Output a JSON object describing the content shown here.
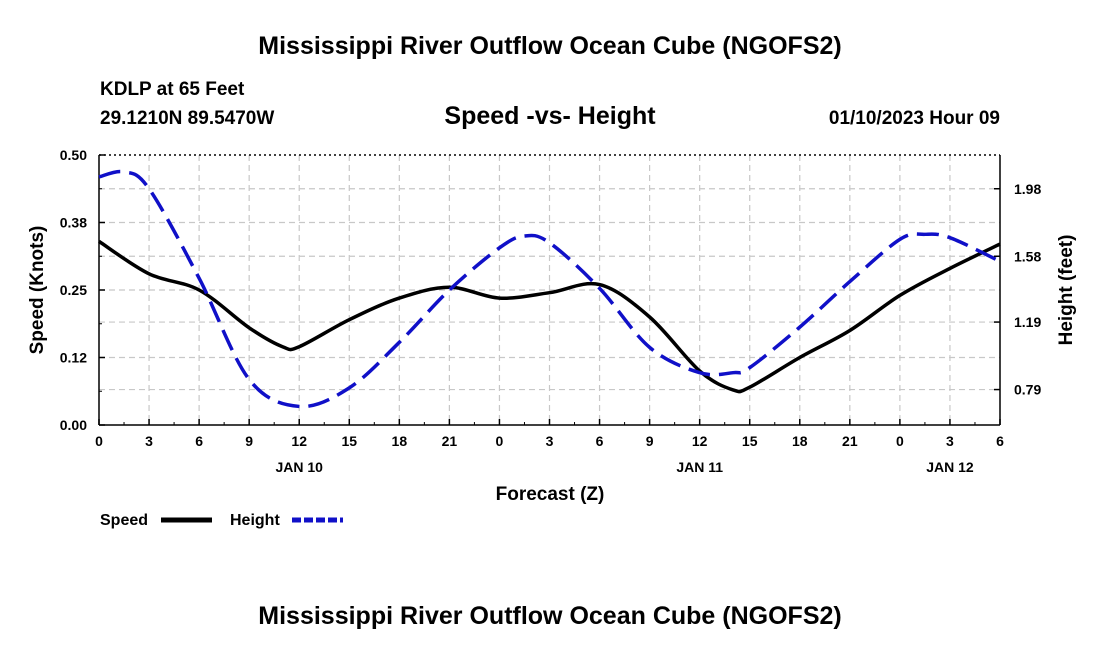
{
  "page": {
    "title": "Mississippi River Outflow Ocean Cube (NGOFS2)",
    "footer_title": "Mississippi River Outflow Ocean Cube (NGOFS2)",
    "station_line1": "KDLP at 65 Feet",
    "station_line2": "29.1210N  89.5470W",
    "datetime": "01/10/2023 Hour 09"
  },
  "colors": {
    "speed": "#000000",
    "height": "#1010c8",
    "grid": "#c8c8c8"
  },
  "chart_data": {
    "type": "line",
    "title": "Speed -vs- Height",
    "xlabel": "Forecast (Z)",
    "ylabel": "Speed (Knots)",
    "y2label": "Height (feet)",
    "xlim": [
      0,
      54
    ],
    "ylim": [
      0,
      0.5
    ],
    "y2lim": [
      0.58,
      2.18
    ],
    "x_ticks": [
      0,
      3,
      6,
      9,
      12,
      15,
      18,
      21,
      24,
      27,
      30,
      33,
      36,
      39,
      42,
      45,
      48,
      51,
      54
    ],
    "x_tick_labels": [
      "0",
      "3",
      "6",
      "9",
      "12",
      "15",
      "18",
      "21",
      "0",
      "3",
      "6",
      "9",
      "12",
      "15",
      "18",
      "21",
      "0",
      "3",
      "6"
    ],
    "day_labels": [
      {
        "x": 12,
        "label": "JAN 10"
      },
      {
        "x": 36,
        "label": "JAN 11"
      },
      {
        "x": 51,
        "label": "JAN 12"
      }
    ],
    "y_ticks": [
      0,
      0.125,
      0.25,
      0.375,
      0.5
    ],
    "y_tick_labels": [
      "0.00",
      "0.12",
      "0.25",
      "0.38",
      "0.50"
    ],
    "y2_ticks": [
      0.79,
      1.19,
      1.58,
      1.98
    ],
    "y2_tick_labels": [
      "0.79",
      "1.19",
      "1.58",
      "1.98"
    ],
    "grid": true,
    "legend_position": "bottom-left",
    "series": [
      {
        "name": "Speed",
        "axis": "left",
        "style": "solid",
        "x": [
          0,
          3,
          6,
          9,
          11,
          12,
          15,
          18,
          21,
          24,
          27,
          30,
          33,
          36,
          38,
          39,
          42,
          45,
          48,
          51,
          54
        ],
        "y": [
          0.34,
          0.28,
          0.25,
          0.18,
          0.145,
          0.145,
          0.195,
          0.235,
          0.255,
          0.235,
          0.245,
          0.26,
          0.2,
          0.1,
          0.065,
          0.07,
          0.125,
          0.175,
          0.24,
          0.29,
          0.335
        ]
      },
      {
        "name": "Height",
        "axis": "right",
        "style": "dashed",
        "x": [
          0,
          1.5,
          3,
          6,
          9,
          12,
          15,
          18,
          21,
          24,
          25.5,
          27,
          30,
          33,
          36,
          38,
          39,
          42,
          45,
          48,
          49.5,
          51,
          54
        ],
        "y": [
          2.05,
          2.08,
          1.98,
          1.45,
          0.85,
          0.69,
          0.8,
          1.07,
          1.38,
          1.63,
          1.7,
          1.66,
          1.39,
          1.04,
          0.89,
          0.89,
          0.92,
          1.16,
          1.43,
          1.68,
          1.71,
          1.69,
          1.55
        ]
      }
    ]
  }
}
